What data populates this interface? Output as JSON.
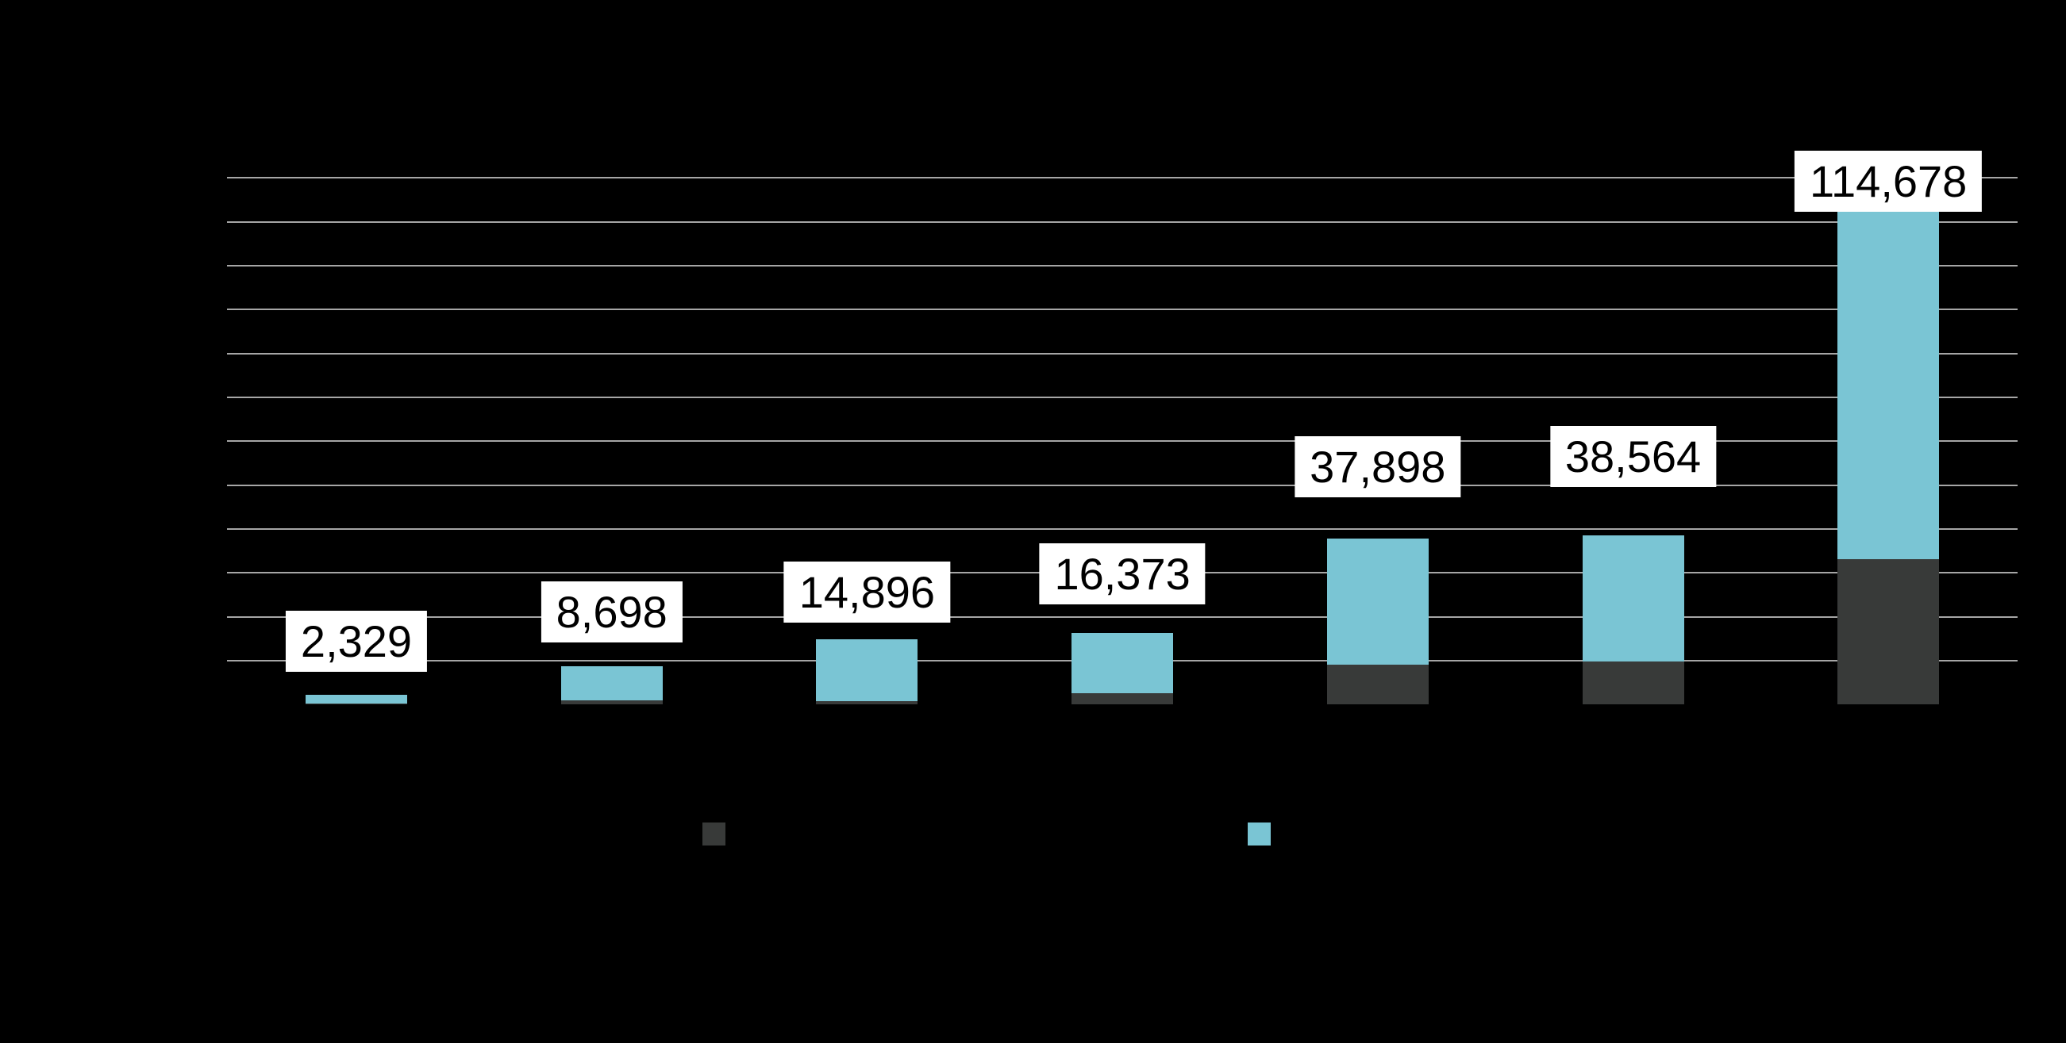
{
  "window": {
    "background": "#000000"
  },
  "chart_data": {
    "type": "bar",
    "stacked": true,
    "orientation": "vertical",
    "title": "",
    "bar_count": 7,
    "totals": [
      2329,
      8698,
      14896,
      16373,
      37898,
      38564,
      114678
    ],
    "total_labels": [
      "2,329",
      "8,698",
      "14,896",
      "16,373",
      "37,898",
      "38,564",
      "114,678"
    ],
    "series": [
      {
        "key": "dark-bottom-segment",
        "color": "#383a39",
        "values": [
          250,
          1000,
          760,
          2550,
          9100,
          9820,
          33160
        ]
      },
      {
        "key": "teal-top-segment",
        "color": "#7ac5d4",
        "values": [
          2079,
          7698,
          14136,
          13823,
          28798,
          28744,
          81518
        ]
      }
    ],
    "value_label_style": {
      "background": "#ffffff",
      "text_color": "#000000"
    },
    "gridlines": {
      "count": 12,
      "step_value": 10000,
      "color": "#a6a6a6",
      "visible": true
    },
    "ylim": [
      0,
      120000
    ],
    "axis_text_visible": false,
    "legend": {
      "position": "bottom",
      "items": [
        {
          "color": "#383a39",
          "label": ""
        },
        {
          "color": "#7ac5d4",
          "label": ""
        }
      ]
    }
  }
}
